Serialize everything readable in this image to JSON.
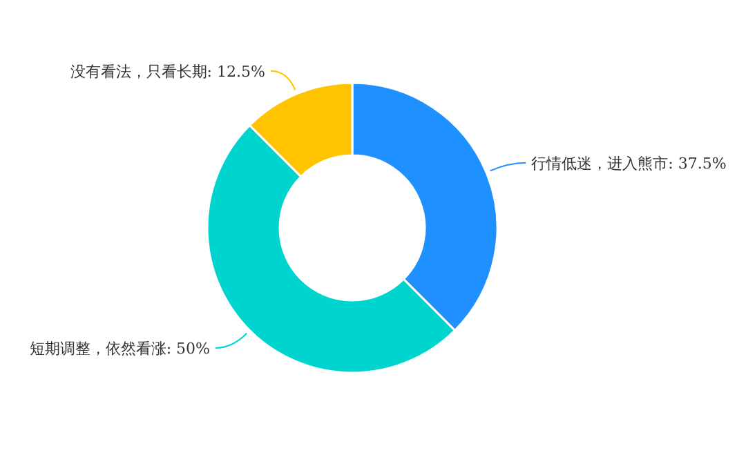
{
  "chart_data": {
    "type": "donut",
    "categories": [
      "行情低迷，进入熊市",
      "短期调整，依然看涨",
      "没有看法，只看长期"
    ],
    "values": [
      37.5,
      50,
      12.5
    ],
    "value_labels": [
      "37.5%",
      "50%",
      "12.5%"
    ],
    "colors": [
      "#1e90ff",
      "#00d4cf",
      "#ffc300"
    ]
  }
}
